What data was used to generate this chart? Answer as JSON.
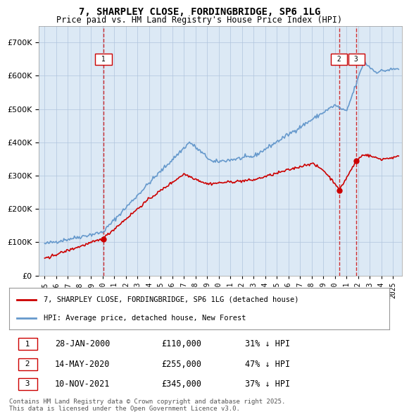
{
  "title": "7, SHARPLEY CLOSE, FORDINGBRIDGE, SP6 1LG",
  "subtitle": "Price paid vs. HM Land Registry's House Price Index (HPI)",
  "red_line_label": "7, SHARPLEY CLOSE, FORDINGBRIDGE, SP6 1LG (detached house)",
  "blue_line_label": "HPI: Average price, detached house, New Forest",
  "transactions": [
    {
      "num": 1,
      "date": 2000.07,
      "price": 110000,
      "label": "28-JAN-2000",
      "pct": "31% ↓ HPI"
    },
    {
      "num": 2,
      "date": 2020.37,
      "price": 255000,
      "label": "14-MAY-2020",
      "pct": "47% ↓ HPI"
    },
    {
      "num": 3,
      "date": 2021.86,
      "price": 345000,
      "label": "10-NOV-2021",
      "pct": "37% ↓ HPI"
    }
  ],
  "footnote": "Contains HM Land Registry data © Crown copyright and database right 2025.\nThis data is licensed under the Open Government Licence v3.0.",
  "ylim": [
    0,
    750000
  ],
  "xlim_start": 1994.5,
  "xlim_end": 2025.8,
  "background_color": "#dce9f5",
  "plot_bg": "#dce9f5",
  "red_color": "#cc0000",
  "blue_color": "#6699cc",
  "grid_color": "#b0c4de",
  "vline_color": "#cc0000"
}
